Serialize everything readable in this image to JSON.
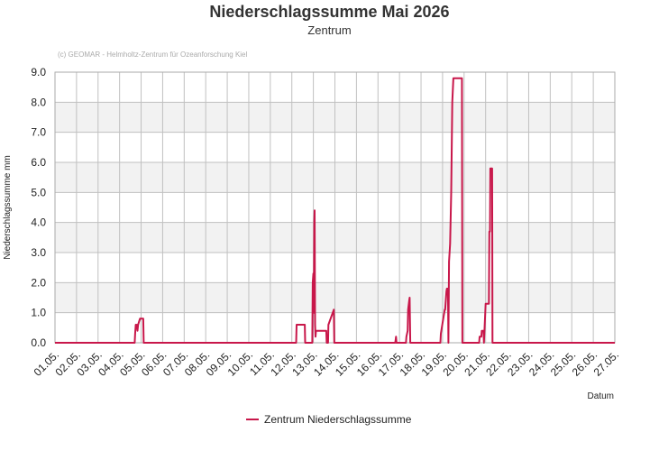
{
  "chart_data": {
    "type": "line",
    "title": "Niederschlagssumme Mai 2026",
    "subtitle": "Zentrum",
    "credit": "(c) GEOMAR - Helmholtz-Zentrum für Ozeanforschung Kiel",
    "xlabel": "Datum",
    "ylabel": "Niederschlagssumme mm",
    "ylim": [
      0,
      9
    ],
    "yticks": [
      "0.0",
      "1.0",
      "2.0",
      "3.0",
      "4.0",
      "5.0",
      "6.0",
      "7.0",
      "8.0",
      "9.0"
    ],
    "xlim": [
      1,
      27
    ],
    "xticks": [
      "01.05.",
      "02.05.",
      "03.05.",
      "04.05.",
      "05.05.",
      "06.05.",
      "07.05.",
      "08.05.",
      "09.05.",
      "10.05.",
      "11.05.",
      "12.05.",
      "13.05.",
      "14.05.",
      "15.05.",
      "16.05.",
      "17.05.",
      "18.05.",
      "19.05.",
      "20.05.",
      "21.05.",
      "22.05.",
      "23.05.",
      "24.05.",
      "25.05.",
      "26.05.",
      "27.05."
    ],
    "grid": true,
    "legend_position": "bottom",
    "series": [
      {
        "name": "Zentrum Niederschlagssumme",
        "color": "#c8174a",
        "x": [
          1.0,
          4.7,
          4.72,
          4.75,
          4.78,
          4.8,
          4.83,
          4.86,
          4.9,
          4.95,
          5.0,
          5.1,
          5.12,
          5.2,
          12.2,
          12.22,
          12.6,
          12.62,
          12.95,
          12.97,
          13.0,
          13.02,
          13.04,
          13.06,
          13.08,
          13.1,
          13.12,
          13.15,
          13.6,
          13.62,
          13.68,
          13.7,
          13.95,
          13.97,
          16.8,
          16.82,
          16.84,
          16.86,
          17.3,
          17.32,
          17.38,
          17.4,
          17.45,
          17.47,
          17.5,
          18.9,
          18.92,
          19.1,
          19.12,
          19.18,
          19.2,
          19.25,
          19.27,
          19.3,
          19.35,
          19.4,
          19.45,
          19.5,
          19.52,
          19.55,
          19.6,
          19.62,
          19.9,
          19.92,
          20.7,
          20.72,
          20.8,
          20.82,
          20.9,
          20.92,
          21.0,
          21.02,
          21.15,
          21.17,
          21.2,
          21.22,
          21.25,
          21.27,
          21.3,
          21.32,
          27.0
        ],
        "y": [
          0.0,
          0.0,
          0.3,
          0.6,
          0.5,
          0.6,
          0.4,
          0.6,
          0.7,
          0.8,
          0.8,
          0.8,
          0.0,
          0.0,
          0.0,
          0.6,
          0.6,
          0.0,
          0.0,
          2.0,
          2.3,
          1.0,
          4.0,
          4.4,
          0.6,
          0.2,
          0.4,
          0.4,
          0.4,
          0.0,
          0.0,
          0.6,
          1.1,
          0.0,
          0.0,
          0.1,
          0.2,
          0.0,
          0.0,
          0.2,
          0.4,
          1.1,
          1.4,
          1.5,
          0.0,
          0.0,
          0.3,
          1.1,
          1.1,
          1.7,
          1.8,
          1.8,
          0.0,
          2.7,
          3.3,
          5.0,
          8.0,
          8.8,
          8.8,
          8.8,
          8.8,
          8.8,
          8.8,
          0.0,
          0.0,
          0.2,
          0.2,
          0.4,
          0.4,
          0.0,
          1.3,
          1.3,
          1.3,
          3.7,
          3.7,
          5.8,
          5.8,
          5.8,
          5.8,
          0.0,
          0.0
        ]
      }
    ]
  }
}
